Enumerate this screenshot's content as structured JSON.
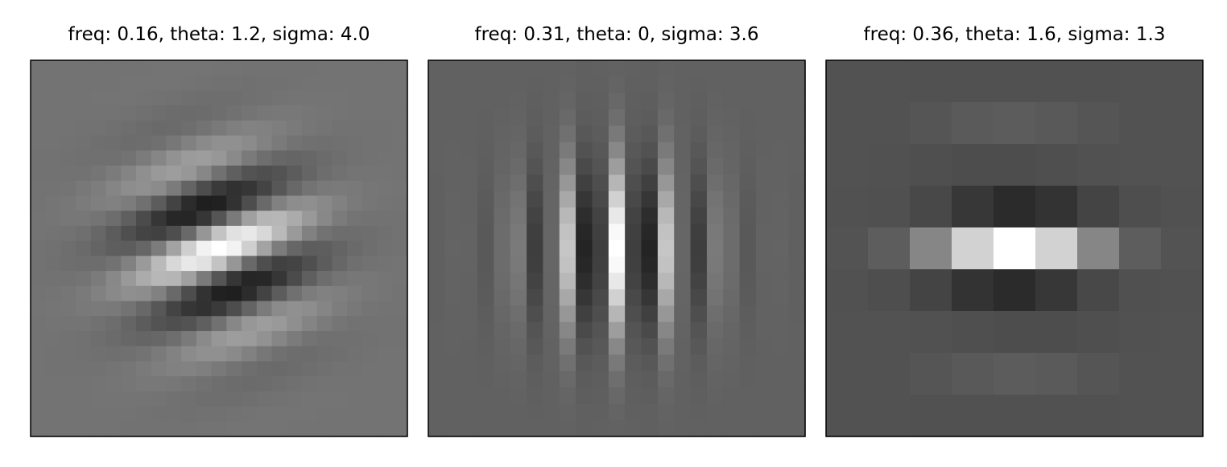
{
  "chart_data": [
    {
      "type": "heatmap",
      "title": "freq: 0.16, theta: 1.2, sigma: 4.0",
      "colormap": "gray",
      "axes_visible": false,
      "grid": false,
      "frequency": 0.16,
      "theta": 1.2,
      "sigma": 4.0,
      "kernel_size": 25,
      "background": 0.45
    },
    {
      "type": "heatmap",
      "title": "freq: 0.31, theta: 0, sigma: 3.6",
      "colormap": "gray",
      "axes_visible": false,
      "grid": false,
      "frequency": 0.31,
      "theta": 0,
      "sigma": 3.6,
      "kernel_size": 23,
      "background": 0.38
    },
    {
      "type": "heatmap",
      "title": "freq: 0.36, theta: 1.6, sigma: 1.3",
      "colormap": "gray",
      "axes_visible": false,
      "grid": false,
      "frequency": 0.36,
      "theta": 1.6,
      "sigma": 1.3,
      "kernel_size": 9,
      "background": 0.32
    }
  ]
}
